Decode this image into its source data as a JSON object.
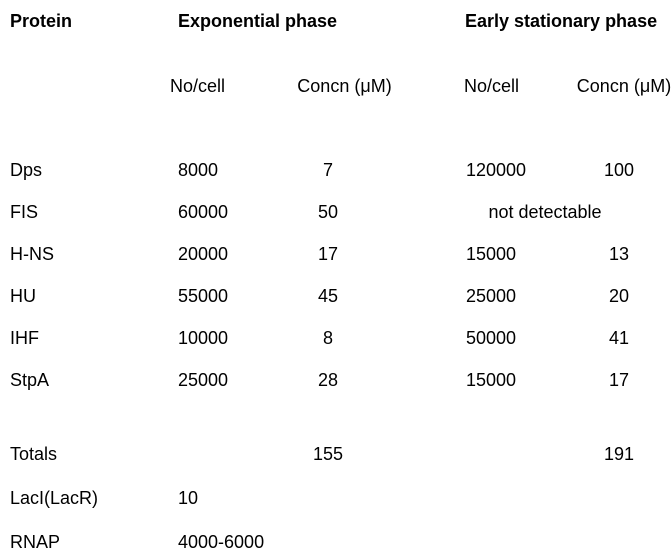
{
  "page": {
    "background_color": "#ffffff",
    "text_color": "#000000"
  },
  "table": {
    "header": {
      "protein": "Protein",
      "group1": "Exponential phase",
      "group2": "Early stationary phase"
    },
    "subheader": {
      "no1": "No/cell",
      "concn1": "Concn (μM)",
      "no2": "No/cell",
      "concn2": "Concn (μM)"
    },
    "rows": [
      {
        "protein": "Dps",
        "no1": "8000",
        "concn1": "7",
        "no2": "120000",
        "concn2": "100"
      },
      {
        "protein": "FIS",
        "no1": "60000",
        "concn1": "50",
        "span2": "not detectable"
      },
      {
        "protein": "H-NS",
        "no1": "20000",
        "concn1": "17",
        "no2": "15000",
        "concn2": "13"
      },
      {
        "protein": "HU",
        "no1": "55000",
        "concn1": "45",
        "no2": "25000",
        "concn2": "20"
      },
      {
        "protein": "IHF",
        "no1": "10000",
        "concn1": "8",
        "no2": "50000",
        "concn2": "41"
      },
      {
        "protein": "StpA",
        "no1": "25000",
        "concn1": "28",
        "no2": "15000",
        "concn2": "17"
      }
    ],
    "totals_row": {
      "label": "Totals",
      "concn1": "155",
      "concn2": "191"
    },
    "footer_rows": [
      {
        "protein": "LacI(LacR)",
        "no1": "10"
      },
      {
        "protein": "RNAP",
        "no1": "4000-6000"
      }
    ]
  },
  "chart_data": {
    "type": "table",
    "columns": [
      "Protein",
      "Exponential phase No/cell",
      "Exponential phase Concn (μM)",
      "Early stationary phase No/cell",
      "Early stationary phase Concn (μM)"
    ],
    "rows": [
      [
        "Dps",
        "8000",
        "7",
        "120000",
        "100"
      ],
      [
        "FIS",
        "60000",
        "50",
        "not detectable",
        "not detectable"
      ],
      [
        "H-NS",
        "20000",
        "17",
        "15000",
        "13"
      ],
      [
        "HU",
        "55000",
        "45",
        "25000",
        "20"
      ],
      [
        "IHF",
        "10000",
        "8",
        "50000",
        "41"
      ],
      [
        "StpA",
        "25000",
        "28",
        "15000",
        "17"
      ],
      [
        "Totals",
        "",
        "155",
        "",
        "191"
      ],
      [
        "LacI(LacR)",
        "10",
        "",
        "",
        ""
      ],
      [
        "RNAP",
        "4000-6000",
        "",
        "",
        ""
      ]
    ]
  }
}
